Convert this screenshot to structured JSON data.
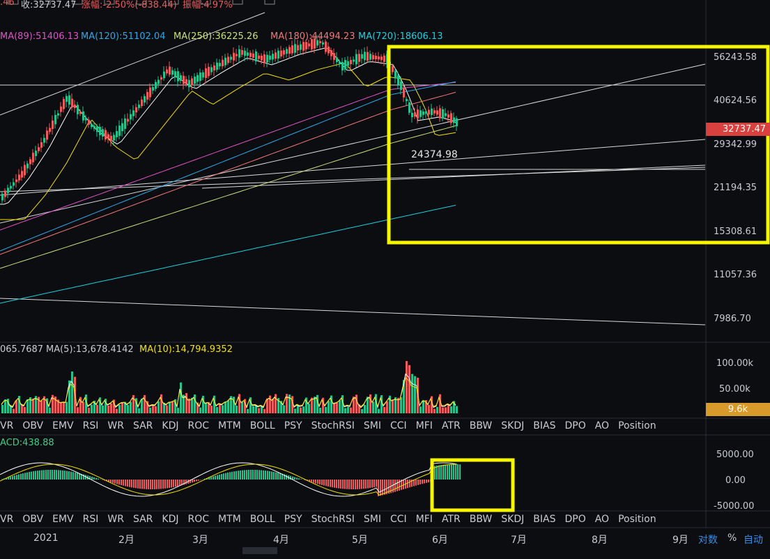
{
  "header": {
    "open_tail": ".46",
    "close_label": "收:32737.47",
    "change_label": "涨幅:-2.50%(-838.44)",
    "amplitude_label": "振幅:4.97%"
  },
  "ma_legend": [
    {
      "text": "MA(89):51406.13",
      "color": "#e052c8"
    },
    {
      "text": "MA(120):51102.04",
      "color": "#2ea8e6"
    },
    {
      "text": "MA(250):36225.26",
      "color": "#c8e07a"
    },
    {
      "text": "MA(180):44494.23",
      "color": "#f07878"
    },
    {
      "text": "MA(720):18606.13",
      "color": "#1ad0e0"
    }
  ],
  "volume_legend": {
    "prefix": "065.7687",
    "ma5": "MA(5):13,678.4142",
    "ma10": "MA(10):14,794.9352"
  },
  "macd_legend": "ACD:438.88",
  "indicator_tabs": [
    "VR",
    "OBV",
    "EMV",
    "RSI",
    "WR",
    "SAR",
    "KDJ",
    "ROC",
    "MTM",
    "BOLL",
    "PSY",
    "StochRSI",
    "SMI",
    "CCI",
    "MFI",
    "ATR",
    "BBW",
    "SKDJ",
    "BIAS",
    "DPO",
    "AO",
    "Position"
  ],
  "x_labels": [
    "2021",
    "2月",
    "3月",
    "4月",
    "5月",
    "6月",
    "7月",
    "8月",
    "9月"
  ],
  "footer": {
    "log_label": "对数",
    "pct_label": "%",
    "auto_label": "自动"
  },
  "chart_data": {
    "type": "candlestick",
    "y_axis_scale": "log",
    "price_ticks": [
      "56243.58",
      "40624.56",
      "29342.99",
      "21194.35",
      "15308.61",
      "11057.36",
      "7986.70"
    ],
    "last_price": "32737.47",
    "annotation": "24374.98",
    "volume_ticks": [
      "100.00k",
      "50.00k"
    ],
    "last_volume": "9.6k",
    "macd_ticks": [
      "5000.00",
      "0.00",
      "-5000.00"
    ],
    "colors": {
      "up": "#22c38e",
      "down": "#ef5b5b",
      "highlight": "#f5f500",
      "last_price": "#d9413e",
      "last_volume": "#d89a2b"
    }
  }
}
